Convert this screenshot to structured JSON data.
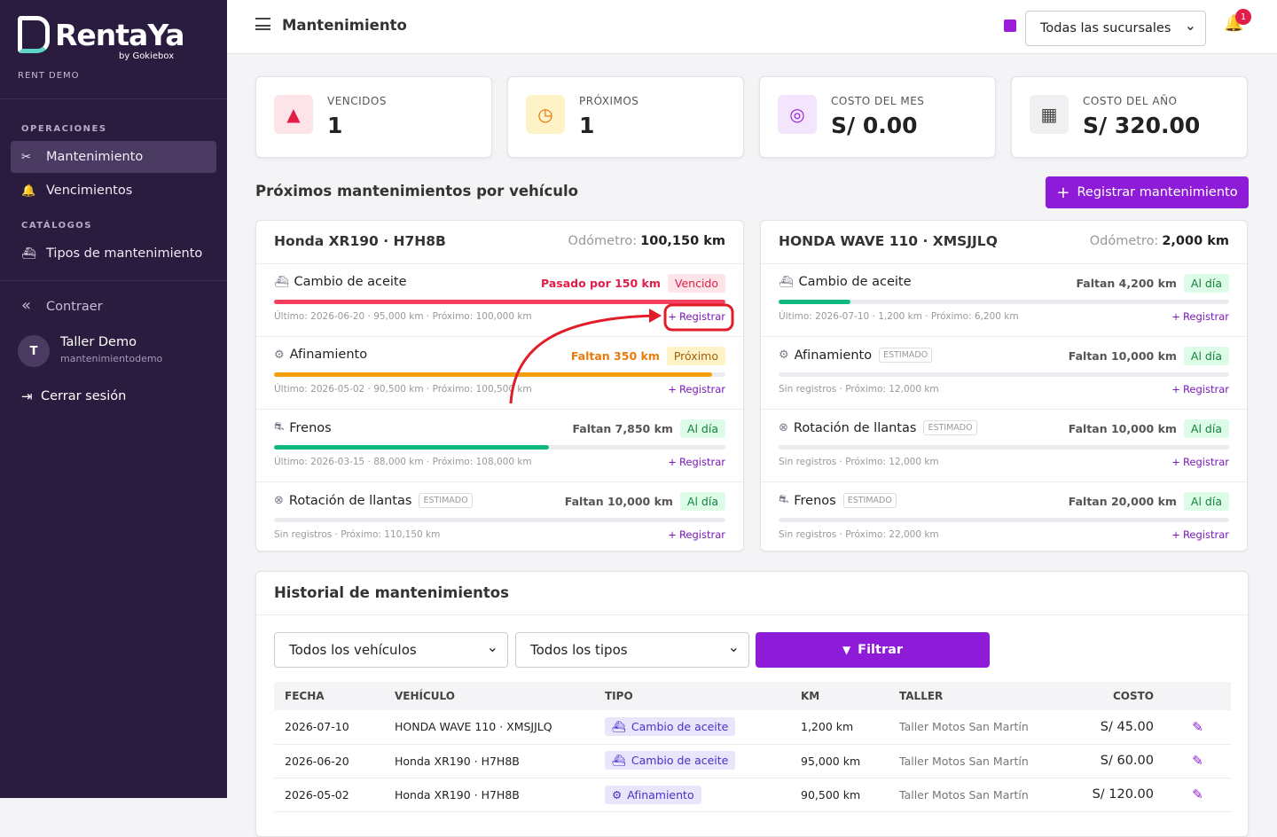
{
  "sidebar": {
    "brand": "RentaYa",
    "brand_sub": "by Gokiebox",
    "tenant": "RENT DEMO",
    "sections": [
      {
        "title": "OPERACIONES",
        "items": [
          "Mantenimiento",
          "Vencimientos"
        ]
      },
      {
        "title": "CATÁLOGOS",
        "items": [
          "Tipos de mantenimiento"
        ]
      }
    ],
    "collapse": "Contraer",
    "user": {
      "initial": "T",
      "name": "Taller Demo",
      "username": "mantenimientodemo"
    },
    "logout": "Cerrar sesión"
  },
  "topbar": {
    "title": "Mantenimiento",
    "branch": "Todas las sucursales",
    "notifications": "1"
  },
  "stats": [
    {
      "label": "VENCIDOS",
      "value": "1"
    },
    {
      "label": "PRÓXIMOS",
      "value": "1"
    },
    {
      "label": "COSTO DEL MES",
      "value": "S/ 0.00"
    },
    {
      "label": "COSTO DEL AÑO",
      "value": "S/ 320.00"
    }
  ],
  "upcoming": {
    "title": "Próximos mantenimientos por vehículo",
    "button": "Registrar mantenimiento",
    "vehicles": [
      {
        "name": "Honda XR190 · H7H8B",
        "odometer_label": "Odómetro:",
        "odometer": "100,150 km",
        "items": [
          {
            "name": "Cambio de aceite",
            "status": "Pasado por 150 km",
            "badge": "Vencido",
            "detail": "Último: 2026-06-20 · 95,000 km · Próximo: 100,000 km",
            "action": "Registrar",
            "progress": 100,
            "color": "#f43f5e"
          },
          {
            "name": "Afinamiento",
            "status": "Faltan 350 km",
            "badge": "Próximo",
            "detail": "Último: 2026-05-02 · 90,500 km · Próximo: 100,500 km",
            "action": "Registrar",
            "progress": 97,
            "color": "#f59e0b"
          },
          {
            "name": "Frenos",
            "status": "Faltan 7,850 km",
            "badge": "Al día",
            "detail": "Último: 2026-03-15 · 88,000 km · Próximo: 108,000 km",
            "action": "Registrar",
            "progress": 61,
            "color": "#10b981"
          },
          {
            "name": "Rotación de llantas",
            "tag": "ESTIMADO",
            "status": "Faltan 10,000 km",
            "badge": "Al día",
            "detail": "Sin registros · Próximo: 110,150 km",
            "action": "Registrar",
            "progress": 0,
            "color": "#10b981"
          }
        ]
      },
      {
        "name": "HONDA WAVE 110 · XMSJJLQ",
        "odometer_label": "Odómetro:",
        "odometer": "2,000 km",
        "items": [
          {
            "name": "Cambio de aceite",
            "status": "Faltan 4,200 km",
            "badge": "Al día",
            "detail": "Último: 2026-07-10 · 1,200 km · Próximo: 6,200 km",
            "action": "Registrar",
            "progress": 16,
            "color": "#10b981"
          },
          {
            "name": "Afinamiento",
            "tag": "ESTIMADO",
            "status": "Faltan 10,000 km",
            "badge": "Al día",
            "detail": "Sin registros · Próximo: 12,000 km",
            "action": "Registrar",
            "progress": 0,
            "color": "#10b981"
          },
          {
            "name": "Rotación de llantas",
            "tag": "ESTIMADO",
            "status": "Faltan 10,000 km",
            "badge": "Al día",
            "detail": "Sin registros · Próximo: 12,000 km",
            "action": "Registrar",
            "progress": 0,
            "color": "#10b981"
          },
          {
            "name": "Frenos",
            "tag": "ESTIMADO",
            "status": "Faltan 20,000 km",
            "badge": "Al día",
            "detail": "Sin registros · Próximo: 22,000 km",
            "action": "Registrar",
            "progress": 0,
            "color": "#10b981"
          }
        ]
      }
    ]
  },
  "history": {
    "title": "Historial de mantenimientos",
    "filter_vehicle": "Todos los vehículos",
    "filter_type": "Todos los tipos",
    "filter_button": "Filtrar",
    "headers": [
      "FECHA",
      "VEHÍCULO",
      "TIPO",
      "KM",
      "TALLER",
      "COSTO"
    ],
    "rows": [
      [
        "2026-07-10",
        "HONDA WAVE 110 · XMSJJLQ",
        "Cambio de aceite",
        "1,200 km",
        "Taller Motos San Martín",
        "S/ 45.00"
      ],
      [
        "2026-06-20",
        "Honda XR190 · H7H8B",
        "Cambio de aceite",
        "95,000 km",
        "Taller Motos San Martín",
        "S/ 60.00"
      ],
      [
        "2026-05-02",
        "Honda XR190 · H7H8B",
        "Afinamiento",
        "90,500 km",
        "Taller Motos San Martín",
        "S/ 120.00"
      ]
    ]
  }
}
